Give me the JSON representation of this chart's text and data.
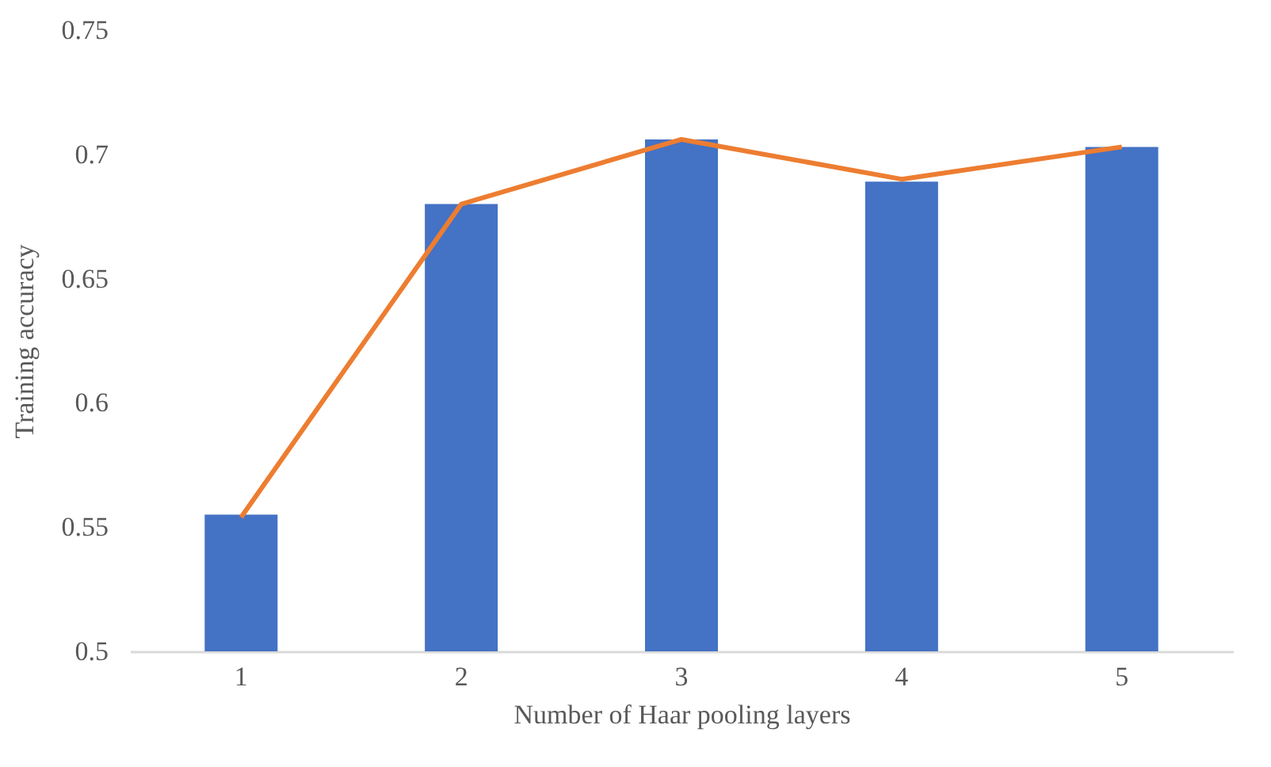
{
  "chart_data": {
    "type": "bar",
    "xlabel": "Number of Haar pooling layers",
    "ylabel": "Training accuracy",
    "categories": [
      "1",
      "2",
      "3",
      "4",
      "5"
    ],
    "series": [
      {
        "color": "#4472c4",
        "values": [
          0.555,
          0.68,
          0.706,
          0.689,
          0.703
        ]
      },
      {
        "type": "line",
        "color": "#ed7d31",
        "values": [
          0.554,
          0.68,
          0.706,
          0.69,
          0.703
        ]
      }
    ],
    "ylim": [
      0.5,
      0.75
    ],
    "yticks": [
      0.5,
      0.55,
      0.6,
      0.65,
      0.7,
      0.75
    ]
  }
}
